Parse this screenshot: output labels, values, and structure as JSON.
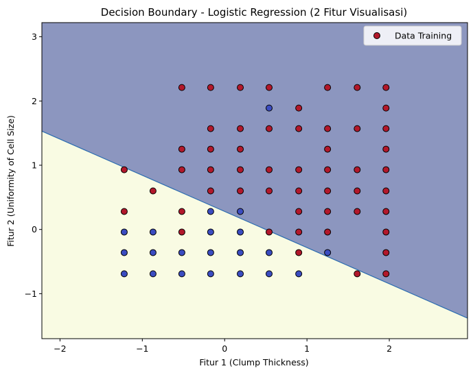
{
  "chart_data": {
    "type": "scatter",
    "title": "Decision Boundary - Logistic Regression (2 Fitur Visualisasi)",
    "xlabel": "Fitur 1 (Clump Thickness)",
    "ylabel": "Fitur 2 (Uniformity of Cell Size)",
    "xlim": [
      -2.22,
      2.95
    ],
    "ylim": [
      -1.7,
      3.22
    ],
    "xticks": [
      -2,
      -1,
      0,
      1,
      2
    ],
    "xtick_labels": [
      "−2",
      "−1",
      "0",
      "1",
      "2"
    ],
    "yticks": [
      -1,
      0,
      1,
      2,
      3
    ],
    "ytick_labels": [
      "−1",
      "0",
      "1",
      "2",
      "3"
    ],
    "grid": false,
    "legend": {
      "placement": "top-right",
      "entries": [
        "Data Training"
      ]
    },
    "decision_boundary": {
      "x": [
        -2.22,
        2.95
      ],
      "y": [
        1.53,
        -1.38
      ],
      "region_above_color": "#8c96bf",
      "region_below_color": "#f9fbe3",
      "line_color": "#2b6cb0"
    },
    "class_colors": {
      "class_1": "#b2182b",
      "class_0": "#3b4cc0"
    },
    "series": [
      {
        "name": "Data Training",
        "class_0_points": [
          [
            0.54,
            1.89
          ],
          [
            -1.22,
            -0.04
          ],
          [
            -0.87,
            -0.04
          ],
          [
            -0.17,
            -0.04
          ],
          [
            0.19,
            -0.04
          ],
          [
            -0.17,
            0.28
          ],
          [
            0.19,
            0.28
          ],
          [
            -1.22,
            -0.36
          ],
          [
            -0.87,
            -0.36
          ],
          [
            -0.52,
            -0.36
          ],
          [
            -0.17,
            -0.36
          ],
          [
            0.19,
            -0.36
          ],
          [
            0.54,
            -0.36
          ],
          [
            1.25,
            -0.36
          ],
          [
            -1.22,
            -0.69
          ],
          [
            -0.87,
            -0.69
          ],
          [
            -0.52,
            -0.69
          ],
          [
            -0.17,
            -0.69
          ],
          [
            0.19,
            -0.69
          ],
          [
            0.54,
            -0.69
          ],
          [
            0.9,
            -0.69
          ]
        ],
        "class_1_points": [
          [
            -0.52,
            2.21
          ],
          [
            -0.17,
            2.21
          ],
          [
            0.19,
            2.21
          ],
          [
            0.54,
            2.21
          ],
          [
            1.25,
            2.21
          ],
          [
            1.61,
            2.21
          ],
          [
            1.96,
            2.21
          ],
          [
            0.9,
            1.89
          ],
          [
            1.96,
            1.89
          ],
          [
            -0.17,
            1.57
          ],
          [
            0.19,
            1.57
          ],
          [
            0.54,
            1.57
          ],
          [
            0.9,
            1.57
          ],
          [
            1.25,
            1.57
          ],
          [
            1.61,
            1.57
          ],
          [
            1.96,
            1.57
          ],
          [
            -0.52,
            1.25
          ],
          [
            -0.17,
            1.25
          ],
          [
            0.19,
            1.25
          ],
          [
            1.25,
            1.25
          ],
          [
            1.96,
            1.25
          ],
          [
            -1.22,
            0.93
          ],
          [
            -0.52,
            0.93
          ],
          [
            -0.17,
            0.93
          ],
          [
            0.19,
            0.93
          ],
          [
            0.54,
            0.93
          ],
          [
            0.9,
            0.93
          ],
          [
            1.25,
            0.93
          ],
          [
            1.61,
            0.93
          ],
          [
            1.96,
            0.93
          ],
          [
            -0.87,
            0.6
          ],
          [
            -0.17,
            0.6
          ],
          [
            0.19,
            0.6
          ],
          [
            0.54,
            0.6
          ],
          [
            0.9,
            0.6
          ],
          [
            1.25,
            0.6
          ],
          [
            1.61,
            0.6
          ],
          [
            1.96,
            0.6
          ],
          [
            -1.22,
            0.28
          ],
          [
            -0.52,
            0.28
          ],
          [
            0.9,
            0.28
          ],
          [
            1.25,
            0.28
          ],
          [
            1.61,
            0.28
          ],
          [
            1.96,
            0.28
          ],
          [
            -0.52,
            -0.04
          ],
          [
            0.54,
            -0.04
          ],
          [
            0.9,
            -0.04
          ],
          [
            1.25,
            -0.04
          ],
          [
            1.96,
            -0.04
          ],
          [
            0.9,
            -0.36
          ],
          [
            1.96,
            -0.36
          ],
          [
            1.61,
            -0.69
          ],
          [
            1.96,
            -0.69
          ]
        ]
      }
    ]
  }
}
